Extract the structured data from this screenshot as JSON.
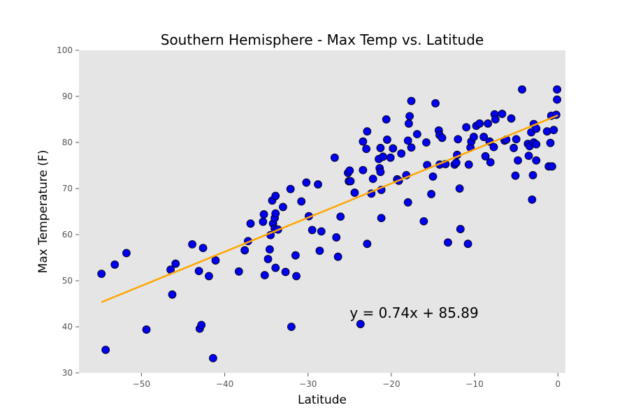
{
  "chart_data": {
    "type": "scatter",
    "title": "Southern Hemisphere - Max Temp vs. Latitude",
    "xlabel": "Latitude",
    "ylabel": "Max Temperature (F)",
    "xlim": [
      -57.5,
      0.9
    ],
    "ylim": [
      30,
      100
    ],
    "xticks": [
      -50,
      -40,
      -30,
      -20,
      -10,
      0
    ],
    "yticks": [
      30,
      40,
      50,
      60,
      70,
      80,
      90,
      100
    ],
    "grid": false,
    "background": "#e5e5e5",
    "marker_color": "#0000ee",
    "marker_edge": "#000000",
    "line_color": "#ffa500",
    "regression": {
      "slope": 0.74,
      "intercept": 85.89,
      "x_range": [
        -54.8,
        0
      ],
      "equation": "y = 0.74x + 85.89",
      "label_at": [
        -25,
        43
      ]
    },
    "points": [
      [
        -54.8,
        51.5
      ],
      [
        -54.3,
        35
      ],
      [
        -53.2,
        53.5
      ],
      [
        -51.8,
        56
      ],
      [
        -49.4,
        39.4
      ],
      [
        -46.5,
        52.4
      ],
      [
        -46.3,
        47
      ],
      [
        -45.9,
        53.7
      ],
      [
        -43.9,
        57.9
      ],
      [
        -43.1,
        52.1
      ],
      [
        -43,
        39.6
      ],
      [
        -42.8,
        40.4
      ],
      [
        -42.6,
        57.1
      ],
      [
        -41.9,
        51
      ],
      [
        -41.4,
        33.2
      ],
      [
        -41.1,
        54.4
      ],
      [
        -38.3,
        52
      ],
      [
        -37.6,
        56.6
      ],
      [
        -37.2,
        58.6
      ],
      [
        -36.9,
        62.4
      ],
      [
        -35.4,
        62.8
      ],
      [
        -35.3,
        64.4
      ],
      [
        -35.2,
        51.2
      ],
      [
        -34.8,
        54.7
      ],
      [
        -34.6,
        56.8
      ],
      [
        -34.5,
        59.9
      ],
      [
        -34.3,
        67.4
      ],
      [
        -34.2,
        62.4
      ],
      [
        -34,
        63.6
      ],
      [
        -34,
        61.3
      ],
      [
        -33.9,
        64.6
      ],
      [
        -33.9,
        68.4
      ],
      [
        -33.9,
        52.8
      ],
      [
        -33.6,
        61.1
      ],
      [
        -33,
        66
      ],
      [
        -32.7,
        51.9
      ],
      [
        -32.1,
        69.9
      ],
      [
        -32,
        40
      ],
      [
        -31.5,
        55.5
      ],
      [
        -31.4,
        51
      ],
      [
        -30.8,
        67.2
      ],
      [
        -30.2,
        71.3
      ],
      [
        -29.9,
        64
      ],
      [
        -29.5,
        61
      ],
      [
        -28.8,
        70.9
      ],
      [
        -28.6,
        56.5
      ],
      [
        -28.4,
        60.7
      ],
      [
        -26.8,
        76.7
      ],
      [
        -26.6,
        59.4
      ],
      [
        -26.4,
        55.2
      ],
      [
        -26.1,
        63.9
      ],
      [
        -25.2,
        73.4
      ],
      [
        -25.1,
        71.6
      ],
      [
        -25,
        73.9
      ],
      [
        -24.9,
        71.6
      ],
      [
        -24.4,
        69.1
      ],
      [
        -23.7,
        40.6
      ],
      [
        -23.4,
        80.2
      ],
      [
        -23.4,
        74
      ],
      [
        -23,
        78.6
      ],
      [
        -22.9,
        82.4
      ],
      [
        -22.9,
        58
      ],
      [
        -22.4,
        68.9
      ],
      [
        -22.2,
        72.1
      ],
      [
        -21.5,
        76.4
      ],
      [
        -21.4,
        74.4
      ],
      [
        -21.3,
        78.8
      ],
      [
        -21.3,
        73.6
      ],
      [
        -21.2,
        69.7
      ],
      [
        -21.2,
        63.6
      ],
      [
        -21,
        76.9
      ],
      [
        -20.6,
        85
      ],
      [
        -20.5,
        80.6
      ],
      [
        -20.1,
        76.7
      ],
      [
        -19.8,
        78.7
      ],
      [
        -19.3,
        72
      ],
      [
        -19.1,
        71.7
      ],
      [
        -18.8,
        77.6
      ],
      [
        -18.2,
        72.9
      ],
      [
        -18,
        80.4
      ],
      [
        -18,
        67
      ],
      [
        -17.9,
        84.1
      ],
      [
        -17.8,
        85.7
      ],
      [
        -17.6,
        89
      ],
      [
        -17.6,
        78.9
      ],
      [
        -16.9,
        81.8
      ],
      [
        -16.1,
        62.9
      ],
      [
        -15.8,
        80
      ],
      [
        -15.7,
        75.1
      ],
      [
        -15.2,
        68.8
      ],
      [
        -15,
        72.6
      ],
      [
        -14.7,
        88.5
      ],
      [
        -14.3,
        82.6
      ],
      [
        -14.2,
        81.6
      ],
      [
        -14.2,
        75.2
      ],
      [
        -13.9,
        81
      ],
      [
        -13.5,
        75.3
      ],
      [
        -13.2,
        58.3
      ],
      [
        -12.4,
        75.2
      ],
      [
        -12.2,
        75.6
      ],
      [
        -12.1,
        77.3
      ],
      [
        -12,
        80.7
      ],
      [
        -11.8,
        70
      ],
      [
        -11.7,
        61.2
      ],
      [
        -11,
        83.3
      ],
      [
        -10.8,
        58
      ],
      [
        -10.7,
        75.2
      ],
      [
        -10.5,
        78.9
      ],
      [
        -10.4,
        80.2
      ],
      [
        -10.1,
        81.2
      ],
      [
        -9.8,
        83.6
      ],
      [
        -9.4,
        84.1
      ],
      [
        -8.9,
        81.2
      ],
      [
        -8.7,
        77
      ],
      [
        -8.4,
        84.1
      ],
      [
        -8.2,
        80.2
      ],
      [
        -8.1,
        75.7
      ],
      [
        -7.7,
        79
      ],
      [
        -7.6,
        86.1
      ],
      [
        -7.5,
        85
      ],
      [
        -6.7,
        86.2
      ],
      [
        -6.4,
        80.4
      ],
      [
        -6.2,
        80.6
      ],
      [
        -5.6,
        85.2
      ],
      [
        -5.3,
        78.8
      ],
      [
        -5.1,
        72.8
      ],
      [
        -5,
        80.7
      ],
      [
        -4.8,
        76.1
      ],
      [
        -4.3,
        91.5
      ],
      [
        -3.6,
        79.7
      ],
      [
        -3.5,
        77.1
      ],
      [
        -3.4,
        79.2
      ],
      [
        -3.2,
        82.2
      ],
      [
        -3.1,
        67.6
      ],
      [
        -3,
        72.9
      ],
      [
        -2.9,
        80
      ],
      [
        -2.9,
        84
      ],
      [
        -2.6,
        83
      ],
      [
        -2.6,
        79.6
      ],
      [
        -2.6,
        76.1
      ],
      [
        -1.3,
        82.4
      ],
      [
        -1.1,
        74.8
      ],
      [
        -0.9,
        79.9
      ],
      [
        -0.8,
        85.8
      ],
      [
        -0.7,
        74.8
      ],
      [
        -0.5,
        82.7
      ],
      [
        -0.2,
        86
      ],
      [
        -0.1,
        89.3
      ],
      [
        -0.1,
        91.5
      ]
    ]
  }
}
